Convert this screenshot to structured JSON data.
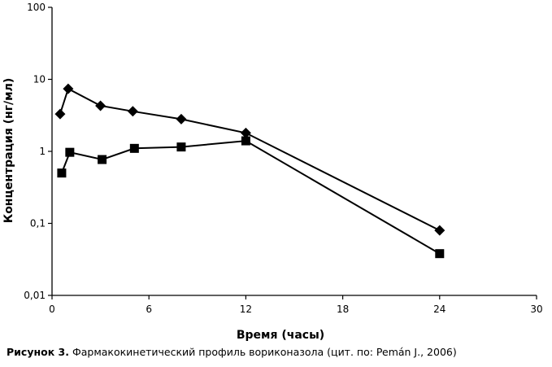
{
  "caption": {
    "lead": "Рисунок 3.",
    "text": " Фармакокинетический профиль вориконазола (цит. по: Pemán J., 2006)"
  },
  "chart_data": {
    "type": "line",
    "title": "",
    "xlabel": "Время (часы)",
    "ylabel": "Концентрация (нг/мл)",
    "xlim": [
      0,
      30
    ],
    "ylim": [
      0.01,
      100
    ],
    "yscale": "log",
    "xticks": [
      0,
      6,
      12,
      18,
      24,
      30
    ],
    "xtick_labels": [
      "0",
      "6",
      "12",
      "18",
      "24",
      "30"
    ],
    "yticks": [
      0.01,
      0.1,
      1,
      10,
      100
    ],
    "ytick_labels": [
      "0,01",
      "0,1",
      "1",
      "10",
      "100"
    ],
    "grid": false,
    "legend": "none",
    "series": [
      {
        "marker": "diamond",
        "color": "#000000",
        "x": [
          0.5,
          1,
          3,
          5,
          8,
          12,
          24
        ],
        "y": [
          3.3,
          7.4,
          4.3,
          3.6,
          2.8,
          1.8,
          0.08
        ]
      },
      {
        "marker": "square",
        "color": "#000000",
        "x": [
          0.6,
          1.1,
          3.1,
          5.1,
          8,
          12,
          24
        ],
        "y": [
          0.5,
          0.97,
          0.77,
          1.1,
          1.15,
          1.4,
          0.038
        ]
      }
    ]
  }
}
